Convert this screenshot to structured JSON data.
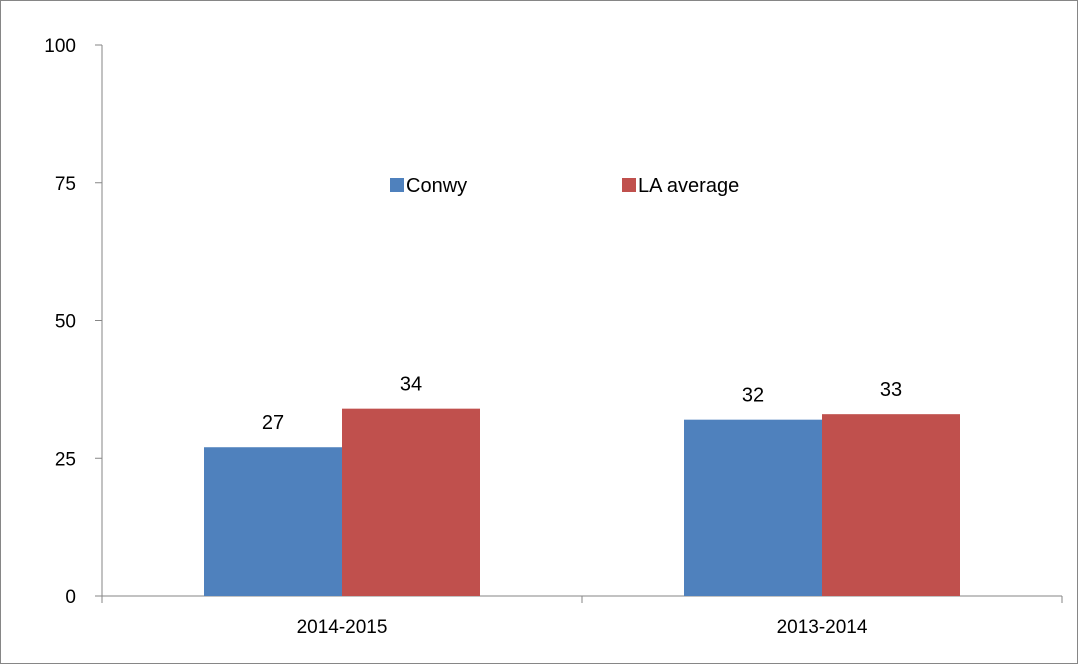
{
  "chart_data": {
    "type": "bar",
    "categories": [
      "2014-2015",
      "2013-2014"
    ],
    "series": [
      {
        "name": "Conwy",
        "values": [
          27,
          32
        ],
        "color": "#4F81BD"
      },
      {
        "name": "LA average",
        "values": [
          34,
          33
        ],
        "color": "#C0504D"
      }
    ],
    "ylim": [
      0,
      100
    ],
    "yticks": [
      "0",
      "25",
      "50",
      "75",
      "100"
    ],
    "grid": false,
    "legend": "top-center",
    "data_labels": true
  }
}
